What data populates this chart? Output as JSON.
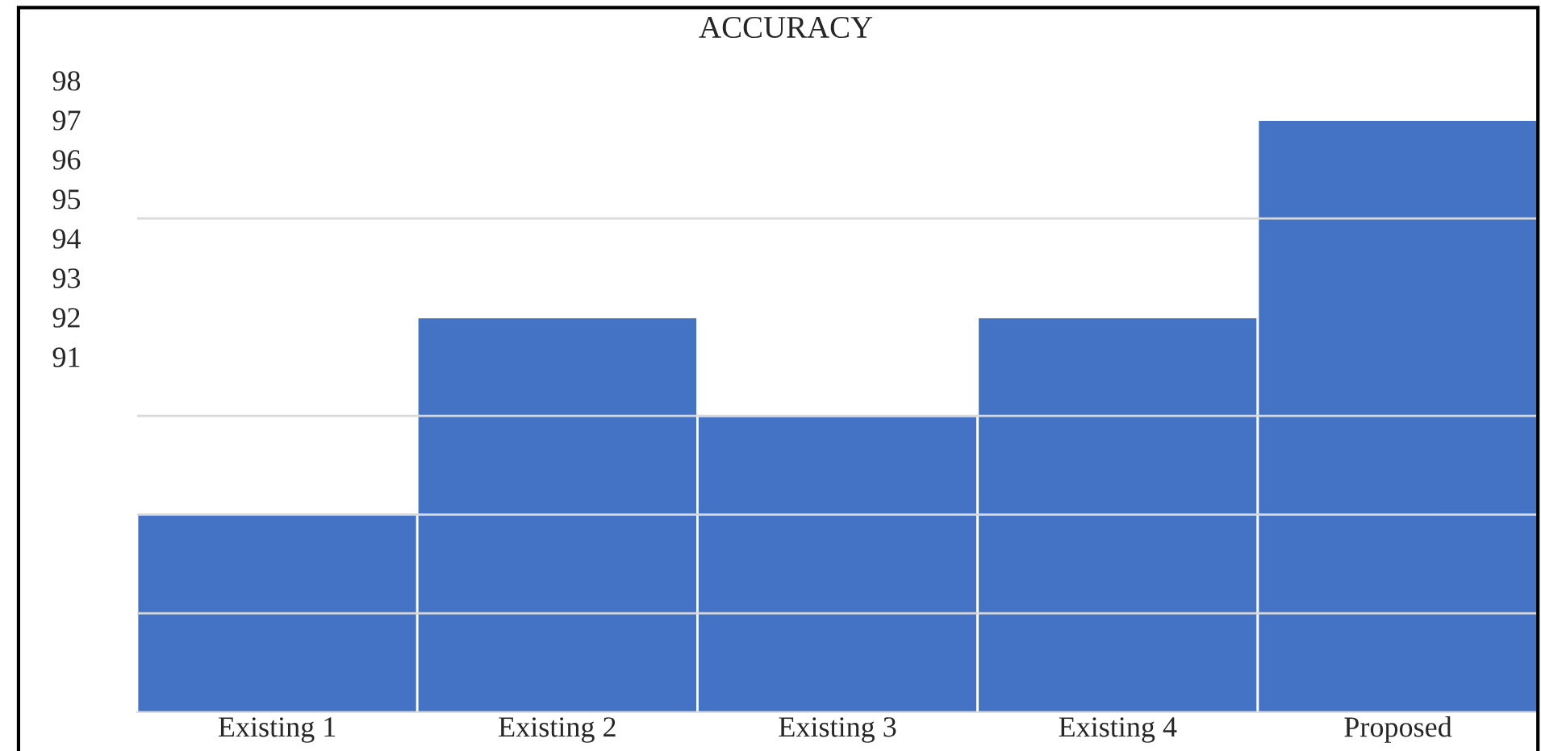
{
  "chart_data": {
    "type": "bar",
    "title": "ACCURACY",
    "categories": [
      "Existing 1",
      "Existing 2",
      "Existing 3",
      "Existing 4",
      "Proposed"
    ],
    "values": [
      87,
      92,
      89.5,
      92,
      97
    ],
    "color": "#4472c4",
    "ylim": [
      82,
      98
    ],
    "yticks": [
      91,
      92,
      93,
      94,
      95,
      96,
      97,
      98,
      {
        "value": 84.5,
        "label": null
      },
      {
        "value": 87,
        "label": null
      },
      {
        "value": 89.5,
        "label": null
      },
      {
        "value": 94.5,
        "label": null
      }
    ],
    "grid": "y",
    "legend": false
  }
}
